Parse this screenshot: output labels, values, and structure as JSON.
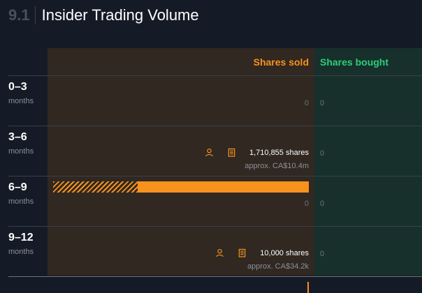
{
  "header": {
    "section_number": "9.1",
    "title": "Insider Trading Volume"
  },
  "columns": {
    "sold": "Shares sold",
    "bought": "Shares bought"
  },
  "colors": {
    "sold": "#f7921e",
    "bought": "#2ccf77",
    "sold_bg": "#302821",
    "bought_bg": "#17302c"
  },
  "chart_data": {
    "type": "bar",
    "title": "Insider Trading Volume",
    "categories": [
      "0–3 months",
      "3–6 months",
      "6–9 months",
      "9–12 months"
    ],
    "series": [
      {
        "name": "Shares sold",
        "values": [
          0,
          1710855,
          0,
          10000
        ]
      },
      {
        "name": "Shares bought",
        "values": [
          0,
          0,
          0,
          0
        ]
      }
    ],
    "sold_striped_fraction": [
      0,
      0.33,
      0,
      0
    ],
    "rows": [
      {
        "range": "0–3",
        "unit": "months",
        "sold": 0,
        "bought": 0,
        "sold_zero": "0",
        "bought_zero": "0"
      },
      {
        "range": "3–6",
        "unit": "months",
        "sold": 1710855,
        "bought": 0,
        "shares_text": "1,710,855 shares",
        "approx_text": "approx. CA$10.4m",
        "bought_zero": "0"
      },
      {
        "range": "6–9",
        "unit": "months",
        "sold": 0,
        "bought": 0,
        "sold_zero": "0",
        "bought_zero": "0"
      },
      {
        "range": "9–12",
        "unit": "months",
        "sold": 10000,
        "bought": 0,
        "shares_text": "10,000 shares",
        "approx_text": "approx. CA$34.2k",
        "bought_zero": "0"
      }
    ],
    "icons": [
      "person-icon",
      "building-icon"
    ]
  }
}
